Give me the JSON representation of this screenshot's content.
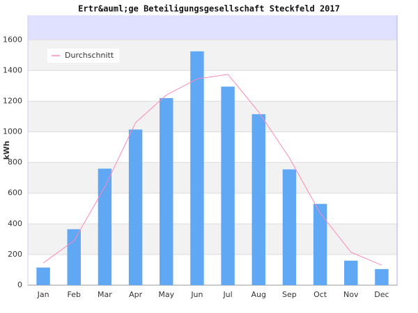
{
  "chart_data": {
    "type": "bar",
    "title": "Ertr&auml;ge Beteiligungsgesellschaft Steckfeld 2017",
    "y_label": "kWh",
    "categories": [
      "Jan",
      "Feb",
      "Mar",
      "Apr",
      "May",
      "Jun",
      "Jul",
      "Aug",
      "Sep",
      "Oct",
      "Nov",
      "Dec"
    ],
    "series": [
      {
        "type": "bar",
        "color": "#60a8f4",
        "values": [
          115,
          365,
          760,
          1015,
          1220,
          1525,
          1295,
          1115,
          755,
          530,
          160,
          105
        ]
      },
      {
        "type": "line",
        "name": "Durchschnitt",
        "color": "#ff88bb",
        "values": [
          145,
          290,
          640,
          1060,
          1240,
          1345,
          1375,
          1130,
          830,
          470,
          215,
          130
        ]
      }
    ],
    "ylim": [
      0,
      1760
    ],
    "yticks": [
      0,
      200,
      400,
      600,
      800,
      1000,
      1200,
      1400,
      1600
    ],
    "grid": true,
    "legend": "top-left"
  }
}
